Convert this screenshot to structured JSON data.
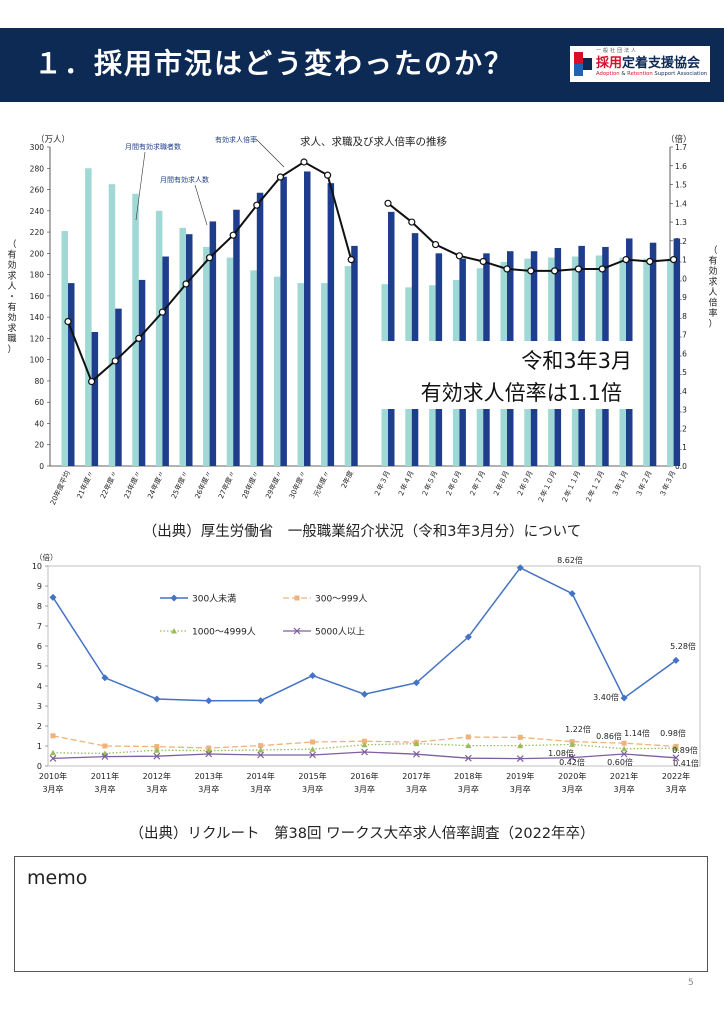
{
  "header": {
    "title": "１．採用市況はどう変わったのか？",
    "logo": {
      "small": "一般社団法人",
      "name_red": "採用",
      "name_rest": "定着支援協会",
      "sub_adoption": "Adoption",
      "sub_amp": " & ",
      "sub_retention": "Retention",
      "sub_rest": " Support Association"
    }
  },
  "chart_data": [
    {
      "type": "bar",
      "title": "求人、求職及び求人倍率の推移",
      "left_axis_unit": "（万人）",
      "right_axis_unit": "（倍）",
      "left_axis_label": "（有効求人・有効求職）",
      "right_axis_label": "（有効求人倍率）",
      "ylim": [
        0,
        300
      ],
      "y2lim": [
        0,
        1.7
      ],
      "y_ticks": [
        "0",
        "20",
        "40",
        "60",
        "80",
        "100",
        "120",
        "140",
        "160",
        "180",
        "200",
        "220",
        "240",
        "260",
        "280",
        "300"
      ],
      "y2_ticks": [
        "0.0",
        "0.1",
        "0.2",
        "0.3",
        "0.4",
        "0.5",
        "0.6",
        "0.7",
        "0.8",
        "0.9",
        "1.0",
        "1.1",
        "1.2",
        "1.3",
        "1.4",
        "1.5",
        "1.6",
        "1.7"
      ],
      "categories_annual": [
        "20年度平均",
        "21年度〃",
        "22年度〃",
        "23年度〃",
        "24年度〃",
        "25年度〃",
        "26年度〃",
        "27年度〃",
        "28年度〃",
        "29年度〃",
        "30年度〃",
        "元年度〃",
        "2年度"
      ],
      "categories_monthly": [
        "２年３月",
        "２年４月",
        "２年５月",
        "２年６月",
        "２年７月",
        "２年８月",
        "２年９月",
        "２年１０月",
        "２年１１月",
        "２年１２月",
        "３年１月",
        "３年２月",
        "３年３月"
      ],
      "series": [
        {
          "name": "月間有効求職者数",
          "color": "#9fd8d4",
          "annual": [
            221,
            280,
            265,
            256,
            240,
            224,
            206,
            196,
            184,
            178,
            172,
            172,
            188
          ],
          "monthly": [
            171,
            168,
            170,
            175,
            186,
            192,
            195,
            196,
            197,
            198,
            196,
            195,
            195
          ]
        },
        {
          "name": "月間有効求人数",
          "color": "#1e3d8c",
          "annual": [
            172,
            126,
            148,
            175,
            197,
            218,
            230,
            241,
            257,
            272,
            277,
            266,
            207
          ],
          "monthly": [
            239,
            219,
            200,
            195,
            200,
            202,
            202,
            205,
            207,
            206,
            214,
            210,
            214
          ]
        },
        {
          "name": "有効求人倍率",
          "color": "#111111",
          "annual": [
            0.77,
            0.45,
            0.56,
            0.68,
            0.82,
            0.97,
            1.11,
            1.23,
            1.39,
            1.54,
            1.62,
            1.55,
            1.1
          ],
          "monthly": [
            1.4,
            1.3,
            1.18,
            1.12,
            1.09,
            1.05,
            1.04,
            1.04,
            1.05,
            1.05,
            1.1,
            1.09,
            1.1
          ]
        }
      ],
      "annotation": [
        "令和3年3月",
        "有効求人倍率は1.1倍"
      ]
    },
    {
      "type": "line",
      "unit": "（倍）",
      "ylim": [
        0,
        10
      ],
      "y_ticks": [
        "0",
        "1",
        "2",
        "3",
        "4",
        "5",
        "6",
        "7",
        "8",
        "9",
        "10"
      ],
      "categories": [
        "2010年\n3月卒",
        "2011年\n3月卒",
        "2012年\n3月卒",
        "2013年\n3月卒",
        "2014年\n3月卒",
        "2015年\n3月卒",
        "2016年\n3月卒",
        "2017年\n3月卒",
        "2018年\n3月卒",
        "2019年\n3月卒",
        "2020年\n3月卒",
        "2021年\n3月卒",
        "2022年\n3月卒"
      ],
      "series": [
        {
          "name": "300人未満",
          "color": "#4472c4",
          "values": [
            8.43,
            4.41,
            3.35,
            3.26,
            3.27,
            4.52,
            3.59,
            4.16,
            6.45,
            9.91,
            8.62,
            3.4,
            5.28
          ]
        },
        {
          "name": "300～999人",
          "color": "#f0b27a",
          "values": [
            1.51,
            1.0,
            0.97,
            0.9,
            1.02,
            1.2,
            1.24,
            1.19,
            1.45,
            1.43,
            1.22,
            1.14,
            0.98
          ]
        },
        {
          "name": "1000～4999人",
          "color": "#9bbb59",
          "values": [
            0.66,
            0.63,
            0.79,
            0.77,
            0.8,
            0.84,
            1.06,
            1.12,
            1.02,
            1.02,
            1.08,
            0.86,
            0.89
          ]
        },
        {
          "name": "5000人以上",
          "color": "#7f5fa0",
          "values": [
            0.38,
            0.47,
            0.49,
            0.6,
            0.55,
            0.55,
            0.7,
            0.59,
            0.39,
            0.37,
            0.42,
            0.6,
            0.41
          ]
        }
      ],
      "data_labels": [
        {
          "text": "8.62倍"
        },
        {
          "text": "5.28倍"
        },
        {
          "text": "3.40倍"
        },
        {
          "text": "1.22倍"
        },
        {
          "text": "0.86倍"
        },
        {
          "text": "1.14倍"
        },
        {
          "text": "0.98倍"
        },
        {
          "text": "1.08倍"
        },
        {
          "text": "0.89倍"
        },
        {
          "text": "0.42倍"
        },
        {
          "text": "0.60倍"
        },
        {
          "text": "0.41倍"
        }
      ]
    }
  ],
  "source1": "（出典）厚生労働省　一般職業紹介状況（令和3年3月分）について",
  "source2": "（出典）リクルート　第38回 ワークス大卒求人倍率調査（2022年卒）",
  "memo_label": "memo",
  "page_number": "5"
}
